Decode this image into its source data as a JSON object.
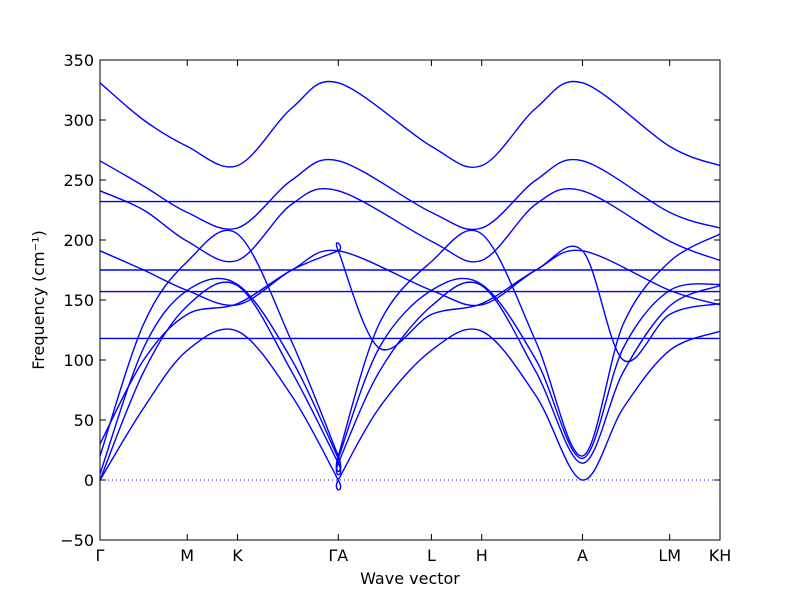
{
  "chart_data": {
    "type": "line",
    "xlabel": "Wave vector",
    "ylabel": "Frequency (cm⁻¹)",
    "ylim": [
      -50,
      350
    ],
    "yticks": [
      -50,
      0,
      50,
      100,
      150,
      200,
      250,
      300,
      350
    ],
    "x_path": [
      "Γ",
      "M",
      "K",
      "Γ",
      "A",
      "L",
      "H",
      "A",
      "L",
      "M",
      "K",
      "H"
    ],
    "x_tick_labels": [
      "Γ",
      "M",
      "K",
      "ΓA",
      "L",
      "H",
      "A",
      "LM",
      "KH"
    ],
    "x_tick_positions": [
      0,
      1,
      1.577,
      2.732,
      3.8,
      4.377,
      5.532,
      6.532,
      7.109
    ],
    "xlim": [
      0,
      7.109
    ],
    "zero_line": true,
    "colors": {
      "bands": "#0000ff",
      "zero_line": "#0000ff"
    },
    "series": [
      {
        "values": [
          [
            0,
            0
          ],
          [
            0.5,
            60
          ],
          [
            1,
            108
          ],
          [
            1.577,
            124
          ],
          [
            2.2,
            70
          ],
          [
            2.732,
            0
          ],
          [
            2.732,
            0
          ],
          [
            3.2,
            60
          ],
          [
            3.8,
            108
          ],
          [
            4.377,
            124
          ],
          [
            5.0,
            70
          ],
          [
            5.532,
            0
          ],
          [
            6.0,
            60
          ],
          [
            6.532,
            108
          ],
          [
            7.109,
            124
          ]
        ]
      },
      {
        "values": [
          [
            0,
            0
          ],
          [
            0.5,
            90
          ],
          [
            1,
            145
          ],
          [
            1.577,
            162
          ],
          [
            2.2,
            90
          ],
          [
            2.732,
            14
          ],
          [
            2.732,
            14
          ],
          [
            3.2,
            90
          ],
          [
            3.8,
            145
          ],
          [
            4.377,
            162
          ],
          [
            5.0,
            90
          ],
          [
            5.532,
            14
          ],
          [
            6.0,
            90
          ],
          [
            6.532,
            145
          ],
          [
            7.109,
            162
          ]
        ]
      },
      {
        "values": [
          [
            0,
            5
          ],
          [
            0.5,
            110
          ],
          [
            1,
            158
          ],
          [
            1.577,
            163
          ],
          [
            2.2,
            100
          ],
          [
            2.732,
            18
          ],
          [
            2.732,
            18
          ],
          [
            3.2,
            110
          ],
          [
            3.8,
            158
          ],
          [
            4.377,
            163
          ],
          [
            5.0,
            100
          ],
          [
            5.532,
            18
          ],
          [
            6.0,
            110
          ],
          [
            6.532,
            158
          ],
          [
            7.109,
            163
          ]
        ]
      },
      {
        "values": [
          [
            0,
            20
          ],
          [
            0.5,
            130
          ],
          [
            1,
            182
          ],
          [
            1.577,
            205
          ],
          [
            2.2,
            115
          ],
          [
            2.732,
            20
          ],
          [
            2.732,
            20
          ],
          [
            3.2,
            130
          ],
          [
            3.8,
            182
          ],
          [
            4.377,
            205
          ],
          [
            5.0,
            115
          ],
          [
            5.532,
            20
          ],
          [
            6.0,
            130
          ],
          [
            6.532,
            182
          ],
          [
            7.109,
            205
          ]
        ]
      },
      {
        "values": [
          [
            0,
            30
          ],
          [
            0.5,
            100
          ],
          [
            1,
            138
          ],
          [
            1.577,
            147
          ],
          [
            2.2,
            175
          ],
          [
            2.732,
            191
          ],
          [
            2.732,
            191
          ],
          [
            3.2,
            110
          ],
          [
            3.8,
            138
          ],
          [
            4.377,
            147
          ],
          [
            5.0,
            175
          ],
          [
            5.532,
            191
          ],
          [
            6.0,
            100
          ],
          [
            6.532,
            138
          ],
          [
            7.109,
            147
          ]
        ]
      },
      {
        "values": [
          [
            0,
            118
          ],
          [
            1,
            118
          ],
          [
            1.577,
            118
          ],
          [
            2.732,
            118
          ],
          [
            3.8,
            118
          ],
          [
            4.377,
            118
          ],
          [
            5.532,
            118
          ],
          [
            6.532,
            118
          ],
          [
            7.109,
            118
          ]
        ]
      },
      {
        "values": [
          [
            0,
            157
          ],
          [
            1,
            157
          ],
          [
            1.577,
            157
          ],
          [
            2.732,
            157
          ],
          [
            3.8,
            157
          ],
          [
            4.377,
            157
          ],
          [
            5.532,
            157
          ],
          [
            6.532,
            157
          ],
          [
            7.109,
            157
          ]
        ]
      },
      {
        "values": [
          [
            0,
            175
          ],
          [
            1,
            175
          ],
          [
            1.577,
            175
          ],
          [
            2.732,
            175
          ],
          [
            3.8,
            175
          ],
          [
            4.377,
            175
          ],
          [
            5.532,
            175
          ],
          [
            6.532,
            175
          ],
          [
            7.109,
            175
          ]
        ]
      },
      {
        "values": [
          [
            0,
            191
          ],
          [
            0.5,
            175
          ],
          [
            1,
            158
          ],
          [
            1.577,
            146
          ],
          [
            2.2,
            175
          ],
          [
            2.732,
            191
          ],
          [
            3.8,
            158
          ],
          [
            4.377,
            146
          ],
          [
            5.0,
            175
          ],
          [
            5.532,
            191
          ],
          [
            6.532,
            158
          ],
          [
            7.109,
            146
          ]
        ]
      },
      {
        "values": [
          [
            0,
            232
          ],
          [
            1,
            232
          ],
          [
            1.577,
            232
          ],
          [
            2.732,
            232
          ],
          [
            3.8,
            232
          ],
          [
            4.377,
            232
          ],
          [
            5.532,
            232
          ],
          [
            6.532,
            232
          ],
          [
            7.109,
            232
          ]
        ]
      },
      {
        "values": [
          [
            0,
            241
          ],
          [
            0.5,
            225
          ],
          [
            1,
            199
          ],
          [
            1.577,
            183
          ],
          [
            2.2,
            230
          ],
          [
            2.732,
            241
          ],
          [
            3.8,
            199
          ],
          [
            4.377,
            183
          ],
          [
            5.0,
            230
          ],
          [
            5.532,
            241
          ],
          [
            6.532,
            199
          ],
          [
            7.109,
            183
          ]
        ]
      },
      {
        "values": [
          [
            0,
            266
          ],
          [
            0.5,
            245
          ],
          [
            1,
            223
          ],
          [
            1.577,
            210
          ],
          [
            2.2,
            250
          ],
          [
            2.732,
            266
          ],
          [
            3.8,
            223
          ],
          [
            4.377,
            210
          ],
          [
            5.0,
            250
          ],
          [
            5.532,
            266
          ],
          [
            6.532,
            223
          ],
          [
            7.109,
            210
          ]
        ]
      },
      {
        "values": [
          [
            0,
            331
          ],
          [
            0.5,
            300
          ],
          [
            1,
            278
          ],
          [
            1.577,
            262
          ],
          [
            2.2,
            310
          ],
          [
            2.732,
            331
          ],
          [
            3.8,
            278
          ],
          [
            4.377,
            262
          ],
          [
            5.0,
            310
          ],
          [
            5.532,
            331
          ],
          [
            6.532,
            278
          ],
          [
            7.109,
            262
          ]
        ]
      }
    ]
  }
}
